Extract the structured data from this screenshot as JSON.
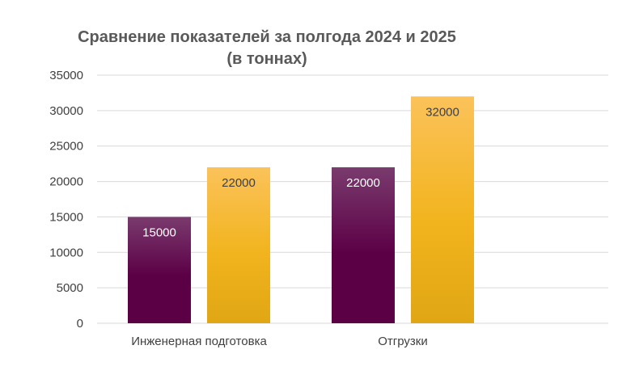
{
  "chart_data": {
    "type": "bar",
    "title_lines": [
      "Сравнение показателей за полгода 2024 и 2025",
      "(в тоннах)"
    ],
    "categories": [
      "Инженерная подготовка",
      "Отгрузки"
    ],
    "series": [
      {
        "values": [
          15000,
          22000
        ],
        "color": "#5c0046",
        "color_light": "#7a3b6e",
        "label_color": "#ffffff"
      },
      {
        "values": [
          22000,
          32000
        ],
        "color": "#f2b41e",
        "color_light": "#fbc25a",
        "color_dark": "#e0a614",
        "label_color": "#404040"
      }
    ],
    "ylim": [
      0,
      35000
    ],
    "yticks": [
      0,
      5000,
      10000,
      15000,
      20000,
      25000,
      30000,
      35000
    ],
    "grid": true,
    "legend": "none"
  }
}
